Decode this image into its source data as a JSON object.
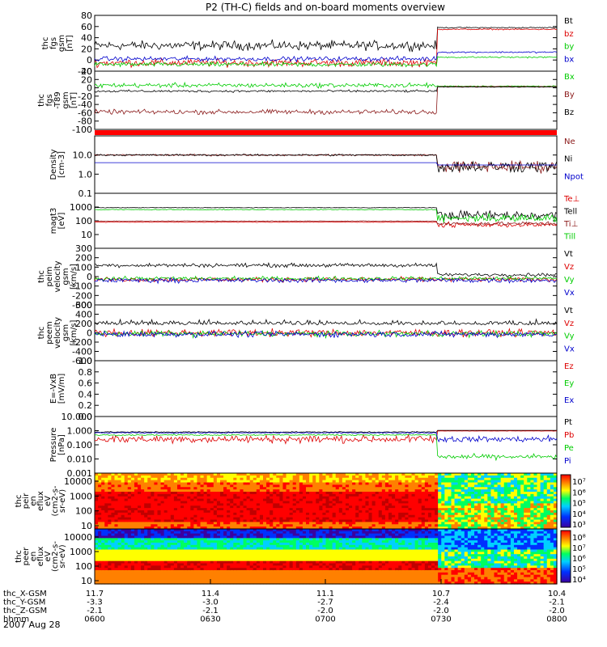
{
  "title": "P2 (TH-C) fields and on-board moments overview",
  "date": "2007 Aug 28",
  "ephemeris": {
    "rows": [
      {
        "label": "thc_X-GSM",
        "values": [
          "11.7",
          "11.4",
          "11.1",
          "10.7",
          "10.4"
        ]
      },
      {
        "label": "thc_Y-GSM",
        "values": [
          "-3.3",
          "-3.0",
          "-2.7",
          "-2.4",
          "-2.1"
        ]
      },
      {
        "label": "thc_Z-GSM",
        "values": [
          "-2.1",
          "-2.1",
          "-2.0",
          "-2.0",
          "-2.0"
        ]
      },
      {
        "label": "hhmm",
        "values": [
          "0600",
          "0630",
          "0700",
          "0730",
          "0800"
        ]
      }
    ]
  },
  "colorbars": [
    {
      "panel": 10,
      "labels": [
        "10⁷",
        "10⁶",
        "10⁵",
        "10⁴",
        "10³"
      ]
    },
    {
      "panel": 11,
      "labels": [
        "10⁸",
        "10⁷",
        "10⁶",
        "10⁵",
        "10⁴"
      ]
    }
  ],
  "chart_data": {
    "type": "line",
    "x_range": [
      "0600",
      "0800"
    ],
    "x_ticks": [
      "0600",
      "0630",
      "0700",
      "0730",
      "0800"
    ],
    "panels": [
      {
        "id": 0,
        "ylabel": [
          "thc",
          "fgs",
          "gsm",
          "[nT]"
        ],
        "ylim": [
          -20,
          80
        ],
        "ticks": [
          "80",
          "60",
          "40",
          "20",
          "0",
          "-20"
        ],
        "series": [
          {
            "name": "Bt",
            "color": "#000000"
          },
          {
            "name": "bz",
            "color": "#dd0000"
          },
          {
            "name": "by",
            "color": "#00cc00"
          },
          {
            "name": "bx",
            "color": "#0000cc"
          }
        ]
      },
      {
        "id": 1,
        "ylabel": [
          "thc",
          "fgs",
          "-T89",
          "gsm",
          "[nT]"
        ],
        "ylim": [
          -100,
          40
        ],
        "ticks": [
          "40",
          "20",
          "0",
          "-20",
          "-40",
          "-60",
          "-80",
          "-100"
        ],
        "series": [
          {
            "name": "Bx",
            "color": "#00cc00"
          },
          {
            "name": "By",
            "color": "#8b1a1a"
          },
          {
            "name": "Bz",
            "color": "#000000"
          }
        ]
      },
      {
        "id": 3,
        "ylabel": [
          "Density",
          "[cm-3]"
        ],
        "ylim": [
          0.1,
          100
        ],
        "log": true,
        "ticks": [
          "10.0",
          "1.0",
          "0.1"
        ],
        "series": [
          {
            "name": "Ne",
            "color": "#8b1a1a"
          },
          {
            "name": "Ni",
            "color": "#000000"
          },
          {
            "name": "Npot",
            "color": "#0000cc"
          }
        ]
      },
      {
        "id": 4,
        "ylabel": [
          "magt3",
          "[eV]"
        ],
        "ylim": [
          1,
          10000
        ],
        "log": true,
        "ticks": [
          "1000",
          "100",
          "10"
        ],
        "series": [
          {
            "name": "Te⊥",
            "color": "#dd0000"
          },
          {
            "name": "Tell",
            "color": "#000000"
          },
          {
            "name": "Ti⊥",
            "color": "#8b1a1a"
          },
          {
            "name": "Till",
            "color": "#00cc00"
          }
        ]
      },
      {
        "id": 5,
        "ylabel": [
          "thc",
          "peim",
          "velocity",
          "gsm",
          "[km/s]"
        ],
        "ylim": [
          -300,
          300
        ],
        "ticks": [
          "300",
          "200",
          "100",
          "0",
          "-100",
          "-200",
          "-300"
        ],
        "series": [
          {
            "name": "Vt",
            "color": "#000000"
          },
          {
            "name": "Vz",
            "color": "#dd0000"
          },
          {
            "name": "Vy",
            "color": "#00cc00"
          },
          {
            "name": "Vx",
            "color": "#0000cc"
          }
        ]
      },
      {
        "id": 6,
        "ylabel": [
          "thc",
          "peem",
          "velocity",
          "gsm",
          "[km/s]"
        ],
        "ylim": [
          -600,
          600
        ],
        "ticks": [
          "600",
          "400",
          "200",
          "0",
          "-200",
          "-400",
          "-600"
        ],
        "series": [
          {
            "name": "Vt",
            "color": "#000000"
          },
          {
            "name": "Vz",
            "color": "#dd0000"
          },
          {
            "name": "Vy",
            "color": "#00cc00"
          },
          {
            "name": "Vx",
            "color": "#0000cc"
          }
        ]
      },
      {
        "id": 7,
        "ylabel": [
          "E=-VxB",
          "[mV/m]"
        ],
        "ylim": [
          0,
          1
        ],
        "ticks": [
          "1.0",
          "0.8",
          "0.6",
          "0.4",
          "0.2",
          "0.0"
        ],
        "series": [
          {
            "name": "Ez",
            "color": "#dd0000"
          },
          {
            "name": "Ey",
            "color": "#00cc00"
          },
          {
            "name": "Ex",
            "color": "#0000cc"
          }
        ]
      },
      {
        "id": 8,
        "ylabel": [
          "Pressure",
          "[nPa]"
        ],
        "ylim": [
          0.001,
          10
        ],
        "log": true,
        "ticks": [
          "10.000",
          "1.000",
          "0.100",
          "0.010",
          "0.001"
        ],
        "series": [
          {
            "name": "Pt",
            "color": "#000000"
          },
          {
            "name": "Pb",
            "color": "#dd0000"
          },
          {
            "name": "Pe",
            "color": "#00cc00"
          },
          {
            "name": "Pi",
            "color": "#0000cc"
          }
        ]
      },
      {
        "id": 10,
        "ylabel": [
          "thc",
          "peir",
          "en",
          "eflux",
          "eV",
          "(cm2-s-",
          "sr-eV)"
        ],
        "type": "heatmap",
        "ticks": [
          "10000",
          "1000",
          "100",
          "10"
        ]
      },
      {
        "id": 11,
        "ylabel": [
          "thc",
          "peer",
          "en",
          "eflux",
          "eV",
          "(cm2-s-",
          "sr-eV)"
        ],
        "type": "heatmap",
        "ticks": [
          "10000",
          "1000",
          "100",
          "10"
        ]
      }
    ]
  }
}
